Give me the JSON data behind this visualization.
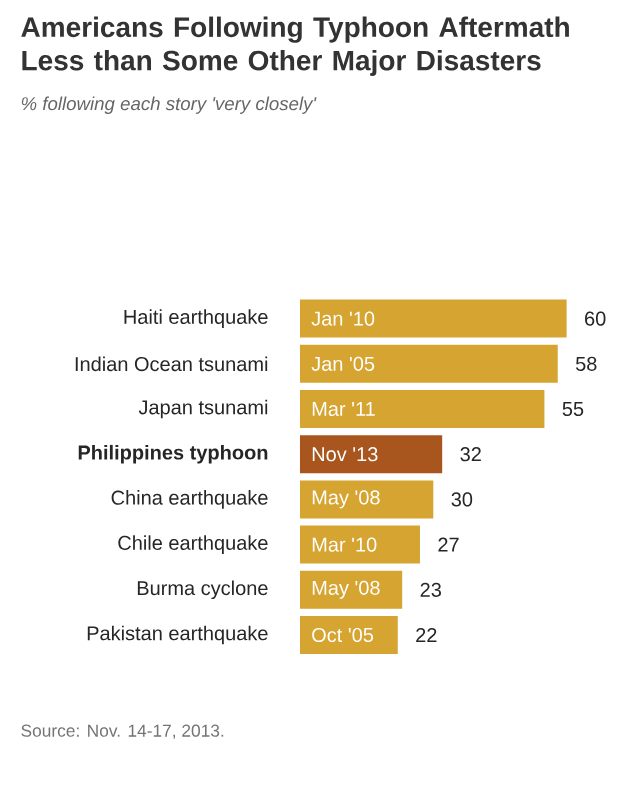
{
  "chart_data": {
    "type": "bar",
    "orientation": "horizontal",
    "title": "Americans Following Typhoon Aftermath Less than Some Other Major Disasters",
    "subtitle": "% following each story 'very closely'",
    "categories": [
      "Haiti earthquake",
      "Indian Ocean tsunami",
      "Japan tsunami",
      "Philippines typhoon",
      "China earthquake",
      "Chile earthquake",
      "Burma cyclone",
      "Pakistan earthquake"
    ],
    "values": [
      60,
      58,
      55,
      32,
      30,
      27,
      23,
      22
    ],
    "colors": [
      "#d6a431",
      "#d6a431",
      "#d6a431",
      "#a8561e",
      "#d6a431",
      "#d6a431",
      "#d6a431",
      "#d6a431"
    ],
    "data_labels": true,
    "annotations": [
      {
        "text": "Jan '10",
        "y": "Haiti earthquake"
      },
      {
        "text": "Jan '05",
        "y": "Indian Ocean tsunami"
      },
      {
        "text": "Mar '11",
        "y": "Japan tsunami"
      },
      {
        "text": "Nov '13",
        "y": "Philippines typhoon"
      },
      {
        "text": "May '08",
        "y": "China earthquake"
      },
      {
        "text": "Mar '10",
        "y": "Chile earthquake"
      },
      {
        "text": "May '08",
        "y": "Burma cyclone"
      },
      {
        "text": "Oct '05",
        "y": "Pakistan earthquake"
      },
      "Source: Nov. 14-17, 2013."
    ]
  }
}
